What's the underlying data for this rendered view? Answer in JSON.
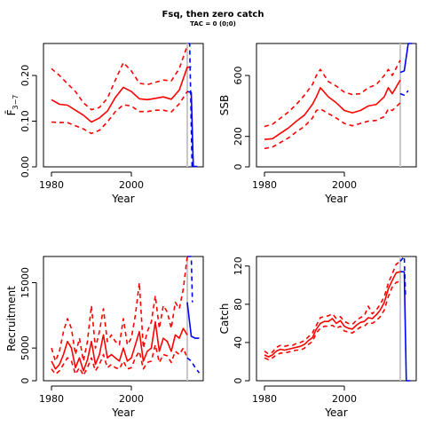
{
  "figure": {
    "title": "Fsq, then zero catch",
    "subtitle": "TAC = 0 (0;0)"
  },
  "colors": {
    "historic": "#ff0000",
    "projection": "#0000ff",
    "vline": "#c8c8c8"
  },
  "chart_data": [
    {
      "id": "fbar",
      "type": "line",
      "xlabel": "Year",
      "ylabel": "F̄",
      "ylabel_sub": "3−7",
      "xlim": [
        1978,
        2018
      ],
      "ylim": [
        0,
        0.27
      ],
      "xticks": [
        1980,
        2000
      ],
      "xticks_labels": [
        "1980",
        "2000"
      ],
      "yticks": [
        0.0,
        0.1,
        0.2
      ],
      "yticks_labels": [
        "0.00",
        "0.10",
        "0.20"
      ],
      "vline": 2014,
      "series": [
        {
          "role": "median",
          "x": [
            1980,
            1982,
            1984,
            1986,
            1988,
            1990,
            1992,
            1994,
            1996,
            1998,
            2000,
            2002,
            2004,
            2006,
            2008,
            2010,
            2012,
            2014,
            2015
          ],
          "y": [
            0.147,
            0.137,
            0.135,
            0.124,
            0.113,
            0.098,
            0.107,
            0.122,
            0.152,
            0.174,
            0.165,
            0.149,
            0.147,
            0.15,
            0.153,
            0.148,
            0.168,
            0.218,
            0.219
          ]
        },
        {
          "role": "upper",
          "x": [
            1980,
            1982,
            1984,
            1986,
            1988,
            1990,
            1992,
            1994,
            1996,
            1998,
            2000,
            2002,
            2004,
            2006,
            2008,
            2010,
            2012,
            2014
          ],
          "y": [
            0.215,
            0.2,
            0.182,
            0.165,
            0.14,
            0.125,
            0.13,
            0.15,
            0.19,
            0.228,
            0.21,
            0.183,
            0.18,
            0.185,
            0.19,
            0.188,
            0.215,
            0.265
          ]
        },
        {
          "role": "lower",
          "x": [
            1980,
            1982,
            1984,
            1986,
            1988,
            1990,
            1992,
            1994,
            1996,
            1998,
            2000,
            2002,
            2004,
            2006,
            2008,
            2010,
            2012,
            2014
          ],
          "y": [
            0.098,
            0.097,
            0.097,
            0.09,
            0.083,
            0.073,
            0.08,
            0.098,
            0.121,
            0.136,
            0.133,
            0.121,
            0.121,
            0.124,
            0.124,
            0.12,
            0.138,
            0.165
          ]
        },
        {
          "role": "projection",
          "x": [
            2014,
            2015,
            2015.5,
            2016.5
          ],
          "y": [
            0.165,
            0.163,
            0.001,
            0.001
          ]
        },
        {
          "role": "projection_upper",
          "x": [
            2014.3,
            2014.6,
            2015.2,
            2015.8
          ],
          "y": [
            0.27,
            0.27,
            0.002,
            0.002
          ]
        }
      ]
    },
    {
      "id": "ssb",
      "type": "line",
      "xlabel": "Year",
      "ylabel": "SSB",
      "xlim": [
        1978,
        2018
      ],
      "ylim": [
        0,
        810
      ],
      "xticks": [
        1980,
        2000
      ],
      "xticks_labels": [
        "1980",
        "2000"
      ],
      "yticks": [
        0,
        200,
        600
      ],
      "yticks_labels": [
        "0",
        "200",
        "600"
      ],
      "vline": 2014,
      "series": [
        {
          "role": "median",
          "x": [
            1980,
            1982,
            1984,
            1986,
            1988,
            1990,
            1992,
            1993,
            1994,
            1996,
            1998,
            2000,
            2002,
            2004,
            2006,
            2008,
            2010,
            2011,
            2012,
            2014
          ],
          "y": [
            180,
            185,
            220,
            255,
            300,
            340,
            410,
            460,
            520,
            460,
            420,
            370,
            355,
            370,
            400,
            410,
            460,
            520,
            480,
            570
          ]
        },
        {
          "role": "upper",
          "x": [
            1980,
            1982,
            1984,
            1986,
            1988,
            1990,
            1992,
            1993,
            1994,
            1996,
            1998,
            2000,
            2002,
            2004,
            2006,
            2008,
            2010,
            2011,
            2012,
            2014
          ],
          "y": [
            265,
            280,
            320,
            360,
            410,
            470,
            540,
            600,
            640,
            560,
            530,
            490,
            475,
            480,
            520,
            540,
            600,
            640,
            600,
            700
          ]
        },
        {
          "role": "lower",
          "x": [
            1980,
            1982,
            1984,
            1986,
            1988,
            1990,
            1992,
            1993,
            1994,
            1996,
            1998,
            2000,
            2002,
            2004,
            2006,
            2008,
            2010,
            2011,
            2012,
            2014
          ],
          "y": [
            120,
            130,
            160,
            190,
            230,
            265,
            320,
            370,
            380,
            350,
            320,
            285,
            270,
            285,
            300,
            305,
            330,
            380,
            370,
            420
          ]
        },
        {
          "role": "projection",
          "x": [
            2014,
            2015,
            2016,
            2017
          ],
          "y": [
            620,
            630,
            810,
            810
          ]
        },
        {
          "role": "projection_lower",
          "x": [
            2014,
            2015,
            2016
          ],
          "y": [
            480,
            470,
            500
          ]
        }
      ]
    },
    {
      "id": "recruitment",
      "type": "line",
      "xlabel": "Year",
      "ylabel": "Recruitment",
      "xlim": [
        1978,
        2018
      ],
      "ylim": [
        0,
        19000
      ],
      "xticks": [
        1980,
        2000
      ],
      "xticks_labels": [
        "1980",
        "2000"
      ],
      "yticks": [
        0,
        5000,
        15000
      ],
      "yticks_labels": [
        "0",
        "5000",
        "15000"
      ],
      "vline": 2014,
      "series": [
        {
          "role": "median",
          "x": [
            1980,
            1981,
            1982,
            1983,
            1984,
            1985,
            1986,
            1987,
            1988,
            1989,
            1990,
            1991,
            1992,
            1993,
            1994,
            1995,
            1996,
            1997,
            1998,
            1999,
            2000,
            2001,
            2002,
            2003,
            2004,
            2005,
            2006,
            2007,
            2008,
            2009,
            2010,
            2011,
            2012,
            2013,
            2014
          ],
          "y": [
            3000,
            1800,
            2500,
            4000,
            6000,
            5000,
            2000,
            3500,
            1500,
            3200,
            6000,
            2500,
            4000,
            7000,
            3500,
            4000,
            3500,
            3000,
            5000,
            3000,
            3500,
            5500,
            7500,
            3000,
            4500,
            5000,
            9000,
            4500,
            6500,
            6000,
            4500,
            7000,
            6500,
            8000,
            7000
          ]
        },
        {
          "role": "upper",
          "x": [
            1980,
            1981,
            1982,
            1983,
            1984,
            1985,
            1986,
            1987,
            1988,
            1989,
            1990,
            1991,
            1992,
            1993,
            1994,
            1995,
            1996,
            1997,
            1998,
            1999,
            2000,
            2001,
            2002,
            2003,
            2004,
            2005,
            2006,
            2007,
            2008,
            2009,
            2010,
            2011,
            2012,
            2013,
            2014
          ],
          "y": [
            5000,
            3000,
            4500,
            7500,
            9500,
            8000,
            4000,
            6500,
            3000,
            6000,
            11500,
            5000,
            7500,
            11000,
            6000,
            7000,
            6000,
            5500,
            9500,
            5500,
            6500,
            10000,
            15000,
            5000,
            7500,
            9000,
            13000,
            8000,
            11500,
            10500,
            8000,
            12000,
            11000,
            14000,
            19000
          ]
        },
        {
          "role": "lower",
          "x": [
            1980,
            1981,
            1982,
            1983,
            1984,
            1985,
            1986,
            1987,
            1988,
            1989,
            1990,
            1991,
            1992,
            1993,
            1994,
            1995,
            1996,
            1997,
            1998,
            1999,
            2000,
            2001,
            2002,
            2003,
            2004,
            2005,
            2006,
            2007,
            2008,
            2009,
            2010,
            2011,
            2012,
            2013,
            2014
          ],
          "y": [
            1800,
            1000,
            1500,
            2500,
            3500,
            3000,
            1000,
            2000,
            800,
            2000,
            3500,
            1500,
            2500,
            4000,
            2000,
            2500,
            2000,
            1800,
            3000,
            1800,
            2000,
            3500,
            4500,
            1800,
            2800,
            3000,
            5500,
            2800,
            4000,
            3800,
            2800,
            4500,
            4000,
            5000,
            3500
          ]
        },
        {
          "role": "projection",
          "x": [
            2014,
            2015,
            2016,
            2017
          ],
          "y": [
            12000,
            6800,
            6500,
            6500
          ]
        },
        {
          "role": "projection_upper",
          "x": [
            2014,
            2015,
            2015.3
          ],
          "y": [
            19000,
            19000,
            12000
          ]
        },
        {
          "role": "projection_lower",
          "x": [
            2014,
            2015,
            2016,
            2017
          ],
          "y": [
            3500,
            3000,
            2000,
            1200
          ]
        }
      ]
    },
    {
      "id": "catch",
      "type": "line",
      "xlabel": "Year",
      "ylabel": "Catch",
      "xlim": [
        1978,
        2018
      ],
      "ylim": [
        0,
        130
      ],
      "xticks": [
        1980,
        2000
      ],
      "xticks_labels": [
        "1980",
        "2000"
      ],
      "yticks": [
        0,
        40,
        80,
        120
      ],
      "yticks_labels": [
        "0",
        "40",
        "80",
        "120"
      ],
      "vline": 2014,
      "series": [
        {
          "role": "median",
          "x": [
            1980,
            1981,
            1982,
            1983,
            1984,
            1985,
            1986,
            1987,
            1988,
            1989,
            1990,
            1991,
            1992,
            1993,
            1994,
            1995,
            1996,
            1997,
            1998,
            1999,
            2000,
            2001,
            2002,
            2003,
            2004,
            2005,
            2006,
            2007,
            2008,
            2009,
            2010,
            2011,
            2012,
            2013,
            2014
          ],
          "y": [
            27,
            25,
            27,
            31,
            33,
            32,
            33,
            34,
            35,
            36,
            38,
            42,
            45,
            54,
            60,
            62,
            62,
            65,
            60,
            63,
            57,
            55,
            54,
            58,
            61,
            62,
            66,
            65,
            69,
            74,
            82,
            96,
            105,
            113,
            114
          ]
        },
        {
          "role": "upper",
          "x": [
            1980,
            1981,
            1982,
            1983,
            1984,
            1985,
            1986,
            1987,
            1988,
            1989,
            1990,
            1991,
            1992,
            1993,
            1994,
            1995,
            1996,
            1997,
            1998,
            1999,
            2000,
            2001,
            2002,
            2003,
            2004,
            2005,
            2006,
            2007,
            2008,
            2009,
            2010,
            2011,
            2012,
            2013,
            2014
          ],
          "y": [
            31,
            28,
            30,
            35,
            37,
            36,
            37,
            37,
            39,
            40,
            42,
            46,
            50,
            58,
            66,
            67,
            68,
            70,
            65,
            67,
            62,
            60,
            59,
            63,
            66,
            68,
            78,
            70,
            74,
            80,
            88,
            102,
            112,
            122,
            125
          ]
        },
        {
          "role": "lower",
          "x": [
            1980,
            1981,
            1982,
            1983,
            1984,
            1985,
            1986,
            1987,
            1988,
            1989,
            1990,
            1991,
            1992,
            1993,
            1994,
            1995,
            1996,
            1997,
            1998,
            1999,
            2000,
            2001,
            2002,
            2003,
            2004,
            2005,
            2006,
            2007,
            2008,
            2009,
            2010,
            2011,
            2012,
            2013,
            2014
          ],
          "y": [
            24,
            22,
            24,
            27,
            29,
            29,
            30,
            31,
            32,
            32,
            34,
            38,
            41,
            50,
            55,
            57,
            57,
            58,
            55,
            57,
            52,
            51,
            50,
            53,
            56,
            57,
            61,
            60,
            63,
            67,
            74,
            88,
            98,
            103,
            104
          ]
        },
        {
          "role": "projection",
          "x": [
            2014,
            2015,
            2015.5,
            2016.5
          ],
          "y": [
            114,
            114,
            0,
            0
          ]
        },
        {
          "role": "projection_upper",
          "x": [
            2014,
            2015,
            2015.3
          ],
          "y": [
            125,
            130,
            90
          ]
        }
      ]
    }
  ]
}
